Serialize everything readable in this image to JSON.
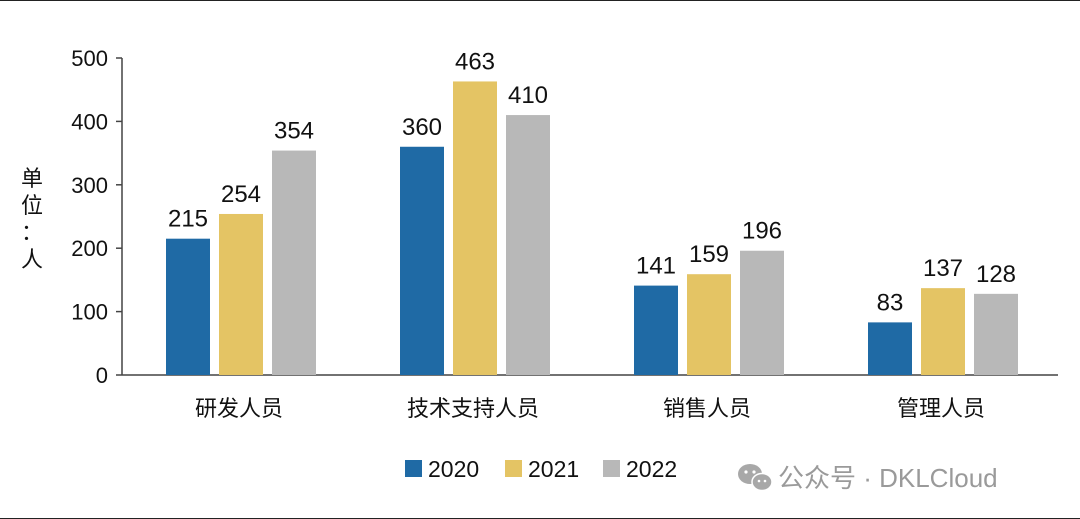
{
  "chart_data": {
    "type": "bar",
    "categories": [
      "研发人员",
      "技术支持人员",
      "销售人员",
      "管理人员"
    ],
    "series": [
      {
        "name": "2020",
        "values": [
          215,
          360,
          141,
          83
        ],
        "color": "#1f6aa5"
      },
      {
        "name": "2021",
        "values": [
          254,
          463,
          159,
          137
        ],
        "color": "#e4c464"
      },
      {
        "name": "2022",
        "values": [
          354,
          410,
          196,
          128
        ],
        "color": "#b8b8b8"
      }
    ],
    "ylim": [
      0,
      500
    ],
    "yticks": [
      0,
      100,
      200,
      300,
      400,
      500
    ],
    "ylabel": "单位：人",
    "ylabel_chars": [
      "单",
      "位",
      "：",
      "人"
    ],
    "grid": false,
    "legend": "bottom"
  },
  "watermark": {
    "text": "公众号 · DKLCloud",
    "icon": "wechat-icon"
  }
}
